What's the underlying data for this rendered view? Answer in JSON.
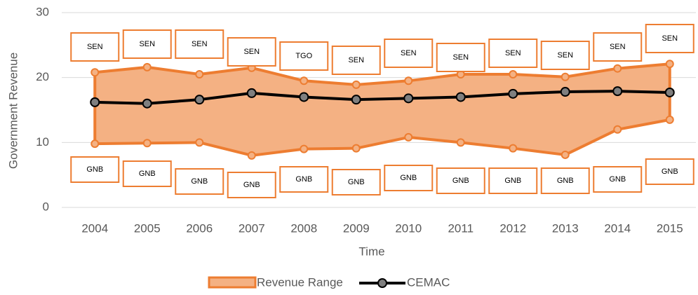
{
  "chart_data": {
    "type": "line",
    "x_label": "Time",
    "y_label": "Government Revenue",
    "categories": [
      "2004",
      "2005",
      "2006",
      "2007",
      "2008",
      "2009",
      "2010",
      "2011",
      "2012",
      "2013",
      "2014",
      "2015"
    ],
    "series": [
      {
        "name": "Revenue  Range",
        "color": "#f4b183",
        "edge_color": "#ed7d31",
        "upper": [
          20.8,
          21.6,
          20.5,
          21.5,
          19.5,
          18.9,
          19.5,
          20.5,
          20.5,
          20.1,
          21.4,
          22.1
        ],
        "lower": [
          9.8,
          9.9,
          10.0,
          8.0,
          9.0,
          9.1,
          10.8,
          10.0,
          9.1,
          8.1,
          12.0,
          13.5
        ],
        "upper_labels": [
          "SEN",
          "SEN",
          "SEN",
          "SEN",
          "TGO",
          "SEN",
          "SEN",
          "SEN",
          "SEN",
          "SEN",
          "SEN",
          "SEN"
        ],
        "lower_labels": [
          "GNB",
          "GNB",
          "GNB",
          "GNB",
          "GNB",
          "GNB",
          "GNB",
          "GNB",
          "GNB",
          "GNB",
          "GNB",
          "GNB"
        ]
      },
      {
        "name": "CEMAC",
        "color": "#000000",
        "marker_color": "#7f7f7f",
        "values": [
          16.2,
          16.0,
          16.6,
          17.6,
          17.0,
          16.6,
          16.8,
          17.0,
          17.5,
          17.8,
          17.9,
          17.7
        ]
      }
    ],
    "ylim": [
      0,
      30
    ],
    "yticks": [
      0,
      10,
      20,
      30
    ],
    "grid": true
  }
}
